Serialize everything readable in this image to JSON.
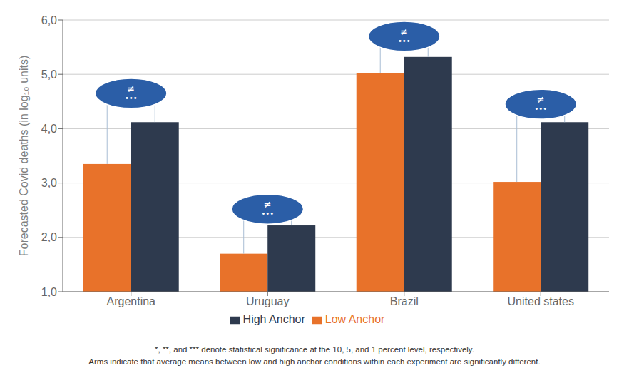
{
  "chart_data": {
    "type": "bar",
    "categories": [
      "Argentina",
      "Uruguay",
      "Brazil",
      "United states"
    ],
    "series": [
      {
        "name": "Low Anchor",
        "color": "#E8722A",
        "values": [
          3.35,
          1.7,
          5.02,
          3.02
        ]
      },
      {
        "name": "High Anchor",
        "color": "#2E3A4E",
        "values": [
          4.12,
          2.22,
          5.32,
          4.12
        ]
      }
    ],
    "ylabel": "Forecasted Covid deaths (in log₁₀ units)",
    "ylim": [
      1.0,
      6.0
    ],
    "yticks": [
      {
        "value": 1.0,
        "label": "1,0"
      },
      {
        "value": 2.0,
        "label": "2,0"
      },
      {
        "value": 3.0,
        "label": "3,0"
      },
      {
        "value": 4.0,
        "label": "4,0"
      },
      {
        "value": 5.0,
        "label": "5,0"
      },
      {
        "value": 6.0,
        "label": "6,0"
      }
    ],
    "grid": true,
    "legend": "bottom",
    "annotations": [
      {
        "category": "Argentina",
        "y": 4.65,
        "text": "≠\n•••",
        "color": "#2B5EA7"
      },
      {
        "category": "Uruguay",
        "y": 2.52,
        "text": "≠\n•••",
        "color": "#2B5EA7"
      },
      {
        "category": "Brazil",
        "y": 5.7,
        "text": "≠\n•••",
        "color": "#2B5EA7"
      },
      {
        "category": "United states",
        "y": 4.45,
        "text": "≠\n•••",
        "color": "#2B5EA7"
      }
    ],
    "footnotes": [
      "*, **, and *** denote statistical significance at the 10, 5, and 1 percent level, respectively.",
      "Arms indicate that average means between low and high anchor conditions within each experiment are significantly different."
    ]
  }
}
